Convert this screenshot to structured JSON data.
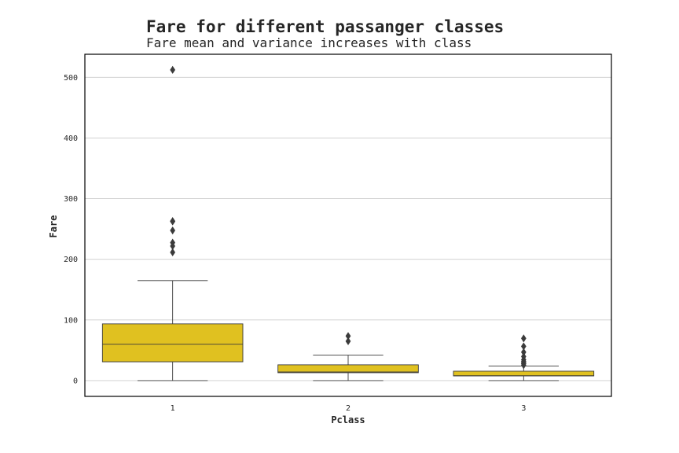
{
  "chart_data": {
    "type": "box",
    "title": "Fare for different passanger classes",
    "subtitle": "Fare mean and variance increases with class",
    "xlabel": "Pclass",
    "ylabel": "Fare",
    "ylim": [
      -26,
      538
    ],
    "yticks": [
      0,
      100,
      200,
      300,
      400,
      500
    ],
    "grid": "y",
    "box_color": "#E0C120",
    "line_color": "#3b3b3b",
    "categories": [
      "1",
      "2",
      "3"
    ],
    "boxes": [
      {
        "category": "1",
        "whisker_low": 0,
        "q1": 31,
        "median": 60,
        "q3": 93.5,
        "whisker_high": 164.9,
        "outliers": [
          512.3,
          263,
          262.4,
          247.5,
          227.5,
          221.8,
          211.5
        ]
      },
      {
        "category": "2",
        "whisker_low": 0,
        "q1": 13,
        "median": 14.25,
        "q3": 26,
        "whisker_high": 42,
        "outliers": [
          73.5,
          65
        ]
      },
      {
        "category": "3",
        "whisker_low": 0,
        "q1": 7.75,
        "median": 8.05,
        "q3": 15.5,
        "whisker_high": 24.2,
        "outliers": [
          69.55,
          56.5,
          46.9,
          39.7,
          34.4,
          31.4,
          29.1,
          27.9,
          25.5
        ]
      }
    ]
  }
}
